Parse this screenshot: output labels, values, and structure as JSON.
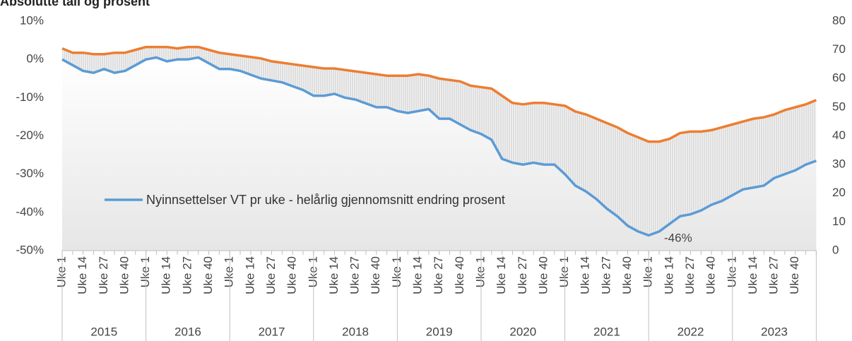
{
  "chart_data": {
    "type": "line",
    "title": "Absolutte tall og prosent",
    "categories": [
      "Uke 1",
      null,
      "Uke 14",
      null,
      "Uke 27",
      null,
      "Uke 40",
      null,
      "Uke 1",
      null,
      "Uke 14",
      null,
      "Uke 27",
      null,
      "Uke 40",
      null,
      "Uke 1",
      null,
      "Uke 14",
      null,
      "Uke 27",
      null,
      "Uke 40",
      null,
      "Uke 1",
      null,
      "Uke 14",
      null,
      "Uke 27",
      null,
      "Uke 40",
      null,
      "Uke 1",
      null,
      "Uke 14",
      null,
      "Uke 27",
      null,
      "Uke 40",
      null,
      "Uke 1",
      null,
      "Uke 14",
      null,
      "Uke 27",
      null,
      "Uke 40",
      null,
      "Uke 1",
      null,
      "Uke 14",
      null,
      "Uke 27",
      null,
      "Uke 40",
      null,
      "Uke 1",
      null,
      "Uke 14",
      null,
      "Uke 27",
      null,
      "Uke 40",
      null,
      "Uke 1",
      null,
      "Uke 14",
      null,
      "Uke 27",
      null,
      "Uke 40",
      null,
      null
    ],
    "groups": [
      "2015",
      "2016",
      "2017",
      "2018",
      "2019",
      "2020",
      "2021",
      "2022",
      "2023"
    ],
    "series": [
      {
        "name": "Nyinnsettelser VT pr uke - helårlig gjennomsnitt endring prosent",
        "color": "#5b9bd5",
        "values": [
          0,
          -1.5,
          -3,
          -3.5,
          -2.5,
          -3.5,
          -3,
          -1.5,
          0,
          0.5,
          -0.5,
          0,
          0,
          0.5,
          -1,
          -2.5,
          -2.5,
          -3,
          -4,
          -5,
          -5.5,
          -6,
          -7,
          -8,
          -9.5,
          -9.5,
          -9,
          -10,
          -10.5,
          -11.5,
          -12.5,
          -12.5,
          -13.5,
          -14,
          -13.5,
          -13,
          -15.5,
          -15.5,
          -17,
          -18.5,
          -19.5,
          -21,
          -26,
          -27,
          -27.5,
          -27,
          -27.5,
          -27.5,
          -30,
          -33,
          -34.5,
          -36.5,
          -39,
          -41,
          -43.5,
          -45,
          -46,
          -45,
          -43,
          -41,
          -40.5,
          -39.5,
          -38,
          -37,
          -35.5,
          -34,
          -33.5,
          -33,
          -31,
          -30,
          -29,
          -27.5,
          -26.5
        ]
      },
      {
        "color": "#ed7d31",
        "axis": "y2",
        "values": [
          70.5,
          69,
          69,
          68.5,
          68.5,
          69,
          69,
          70,
          71,
          71,
          71,
          70.5,
          71,
          71,
          70,
          69,
          68.5,
          68,
          67.5,
          67,
          66,
          65.5,
          65,
          64.5,
          64,
          63.5,
          63.5,
          63,
          62.5,
          62,
          61.5,
          61,
          61,
          61,
          61.5,
          61,
          60,
          59.5,
          59,
          57.5,
          57,
          56.5,
          54,
          51.5,
          51,
          51.5,
          51.5,
          51,
          50.5,
          48.5,
          47.5,
          46,
          44.5,
          43,
          41,
          39.5,
          38,
          38,
          39,
          41,
          41.5,
          41.5,
          42,
          43,
          44,
          45,
          46,
          46.5,
          47.5,
          49,
          50,
          51,
          52.5
        ]
      }
    ],
    "annotations": [
      {
        "text": "-46%"
      }
    ],
    "ylim": [
      -50,
      10
    ],
    "yticks": [
      {
        "value": -50,
        "label": "-50%"
      },
      {
        "value": -40,
        "label": "-40%"
      },
      {
        "value": -30,
        "label": "-30%"
      },
      {
        "value": -20,
        "label": "-20%"
      },
      {
        "value": -10,
        "label": "-10%"
      },
      {
        "value": 0,
        "label": "0%"
      },
      {
        "value": 10,
        "label": "10%"
      }
    ],
    "y2lim": [
      0,
      80
    ],
    "y2ticks": [
      0,
      10,
      20,
      30,
      40,
      50,
      60,
      70,
      80
    ],
    "legend": "inside"
  }
}
